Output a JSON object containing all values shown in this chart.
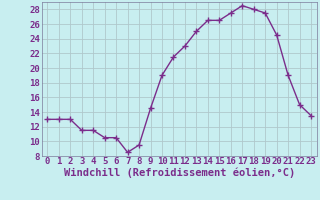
{
  "x": [
    0,
    1,
    2,
    3,
    4,
    5,
    6,
    7,
    8,
    9,
    10,
    11,
    12,
    13,
    14,
    15,
    16,
    17,
    18,
    19,
    20,
    21,
    22,
    23
  ],
  "y": [
    13,
    13,
    13,
    11.5,
    11.5,
    10.5,
    10.5,
    8.5,
    9.5,
    14.5,
    19,
    21.5,
    23,
    25,
    26.5,
    26.5,
    27.5,
    28.5,
    28,
    27.5,
    24.5,
    19,
    15,
    13.5
  ],
  "line_color": "#7B2D8B",
  "marker": "+",
  "marker_size": 4,
  "marker_lw": 1.0,
  "bg_color": "#C8EEF0",
  "grid_color": "#B0C8CC",
  "xlabel": "Windchill (Refroidissement éolien,°C)",
  "xlabel_fontsize": 7.5,
  "tick_fontsize": 6.5,
  "xlim": [
    -0.5,
    23.5
  ],
  "ylim": [
    8,
    29
  ],
  "yticks": [
    8,
    10,
    12,
    14,
    16,
    18,
    20,
    22,
    24,
    26,
    28
  ],
  "xticks": [
    0,
    1,
    2,
    3,
    4,
    5,
    6,
    7,
    8,
    9,
    10,
    11,
    12,
    13,
    14,
    15,
    16,
    17,
    18,
    19,
    20,
    21,
    22,
    23
  ],
  "spine_color": "#7B7B9B",
  "line_width": 1.0
}
